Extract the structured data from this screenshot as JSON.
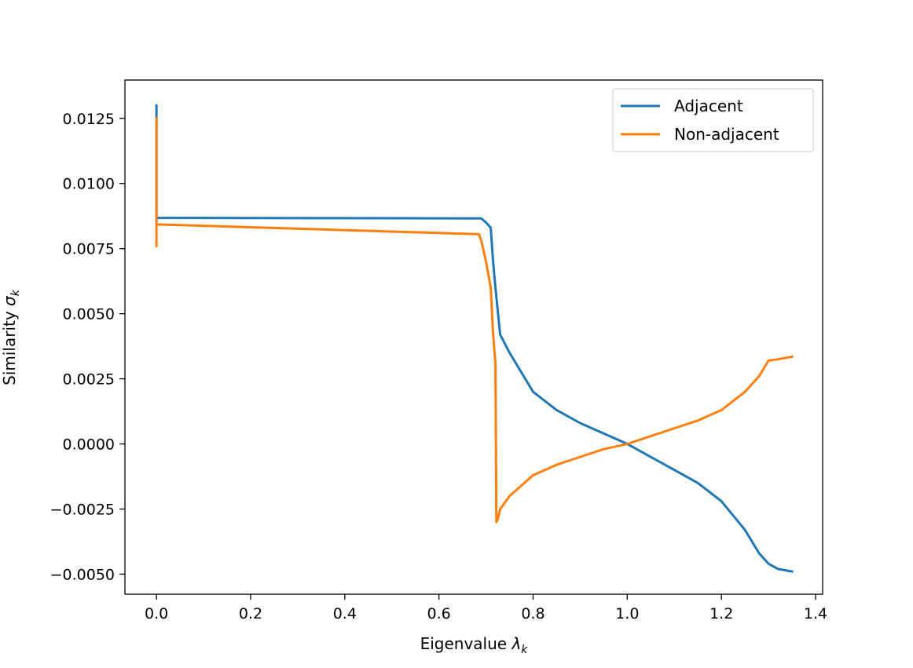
{
  "chart_data": {
    "type": "line",
    "title": "",
    "xlabel": "Eigenvalue",
    "xlabel_symbol": "λ",
    "xlabel_subscript": "k",
    "ylabel": "Similarity",
    "ylabel_symbol": "σ",
    "ylabel_subscript": "k",
    "xlim": [
      -0.067,
      1.415
    ],
    "ylim": [
      -0.00577,
      0.01397
    ],
    "x_ticks": [
      0.0,
      0.2,
      0.4,
      0.6,
      0.8,
      1.0,
      1.2,
      1.4
    ],
    "x_tick_labels": [
      "0.0",
      "0.2",
      "0.4",
      "0.6",
      "0.8",
      "1.0",
      "1.2",
      "1.4"
    ],
    "y_ticks": [
      0.0125,
      0.01,
      0.0075,
      0.005,
      0.0025,
      0.0,
      -0.0025,
      -0.005
    ],
    "y_tick_labels": [
      "0.0125",
      "0.0100",
      "0.0075",
      "0.0050",
      "0.0025",
      "0.0000",
      "−0.0025",
      "−0.0050"
    ],
    "grid": false,
    "legend_position": "top-right",
    "series": [
      {
        "name": "Adjacent",
        "color": "#1f77b4",
        "x": [
          0.0,
          0.0,
          0.0,
          0.0,
          0.69,
          0.7,
          0.71,
          0.715,
          0.72,
          0.73,
          0.75,
          0.8,
          0.85,
          0.9,
          0.95,
          1.0,
          1.05,
          1.1,
          1.15,
          1.2,
          1.25,
          1.28,
          1.3,
          1.32,
          1.35
        ],
        "y": [
          0.013,
          0.0085,
          0.0125,
          0.00868,
          0.00866,
          0.0085,
          0.0083,
          0.007,
          0.006,
          0.0042,
          0.0035,
          0.002,
          0.0013,
          0.0008,
          0.0004,
          0.0,
          -0.0005,
          -0.001,
          -0.0015,
          -0.0022,
          -0.0033,
          -0.0042,
          -0.0046,
          -0.0048,
          -0.0049
        ]
      },
      {
        "name": "Non-adjacent",
        "color": "#ff7f0e",
        "x": [
          0.0,
          0.0,
          0.0,
          0.0,
          0.685,
          0.69,
          0.7,
          0.71,
          0.715,
          0.72,
          0.722,
          0.725,
          0.73,
          0.75,
          0.8,
          0.85,
          0.9,
          0.95,
          1.0,
          1.05,
          1.1,
          1.15,
          1.2,
          1.25,
          1.28,
          1.3,
          1.32,
          1.35
        ],
        "y": [
          0.0076,
          0.0125,
          0.008,
          0.00843,
          0.00805,
          0.0078,
          0.007,
          0.006,
          0.0042,
          0.0031,
          -0.003,
          -0.0029,
          -0.0025,
          -0.002,
          -0.0012,
          -0.0008,
          -0.0005,
          -0.0002,
          0.0,
          0.0003,
          0.0006,
          0.0009,
          0.0013,
          0.002,
          0.0026,
          0.0032,
          0.00325,
          0.00335
        ]
      }
    ]
  }
}
